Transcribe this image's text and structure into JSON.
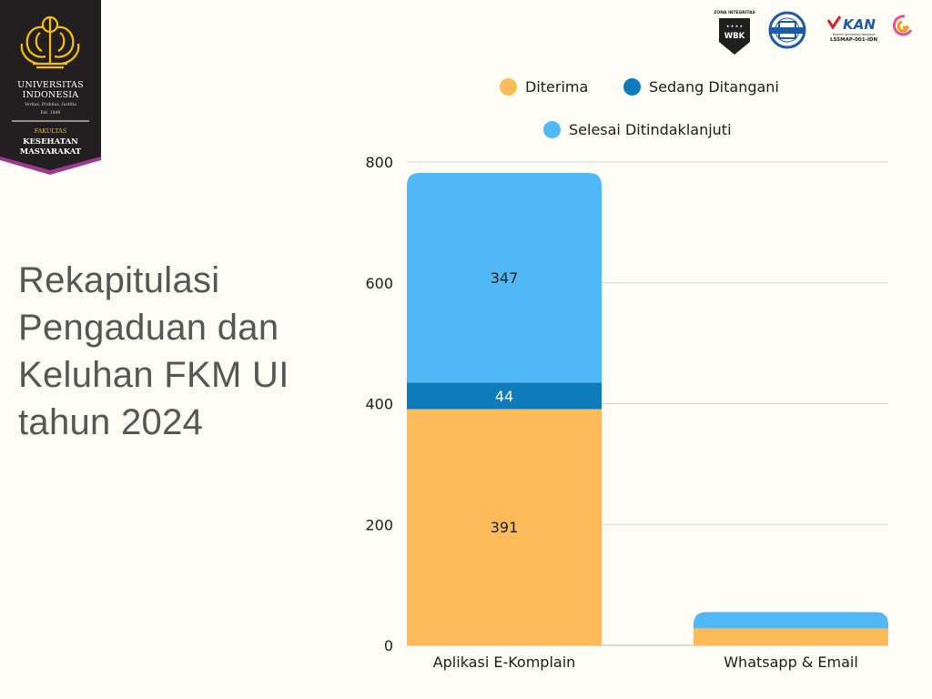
{
  "logo": {
    "university_line1": "UNIVERSITAS",
    "university_line2": "INDONESIA",
    "motto": "Veritas, Probitas, Iustitia",
    "established": "Est. 1849",
    "faculty_label": "FAKULTAS",
    "faculty_line1": "KESEHATAN",
    "faculty_line2": "MASYARAKAT",
    "banner_color": "#231F20",
    "accent_color": "#F2C200",
    "chevron_color": "#9B3A8F"
  },
  "certifications": {
    "wbk_caption": "ZONA INTEGRITAS",
    "wbk_text": "WBK",
    "kan_text": "KAN",
    "kan_caption": "Komite Akreditasi Nasional",
    "kan_code": "LSSMAP-001-IDN"
  },
  "title": {
    "line1": "Rekapitulasi",
    "line2": "Pengaduan dan",
    "line3": "Keluhan FKM UI",
    "line4": "tahun 2024"
  },
  "chart_data": {
    "type": "bar",
    "stacked": true,
    "title": "Rekapitulasi Pengaduan dan Keluhan FKM UI tahun 2024",
    "xlabel": "",
    "ylabel": "",
    "ylim": [
      0,
      800
    ],
    "yticks": [
      0,
      200,
      400,
      600,
      800
    ],
    "grid": true,
    "legend_position": "top",
    "categories": [
      "Aplikasi E-Komplain",
      "Whatsapp & Email"
    ],
    "series": [
      {
        "name": "Diterima",
        "color": "#FDBA58",
        "label_color": "#1d1d1d",
        "values": [
          391,
          28
        ],
        "labels": [
          "391",
          null
        ]
      },
      {
        "name": "Sedang Ditangani",
        "color": "#0E7BBD",
        "label_color": "#ffffff",
        "values": [
          44,
          0
        ],
        "labels": [
          "44",
          null
        ]
      },
      {
        "name": "Selesai Ditindaklanjuti",
        "color": "#50B8F5",
        "label_color": "#1d1d1d",
        "values": [
          347,
          27
        ],
        "labels": [
          "347",
          null
        ]
      }
    ]
  }
}
